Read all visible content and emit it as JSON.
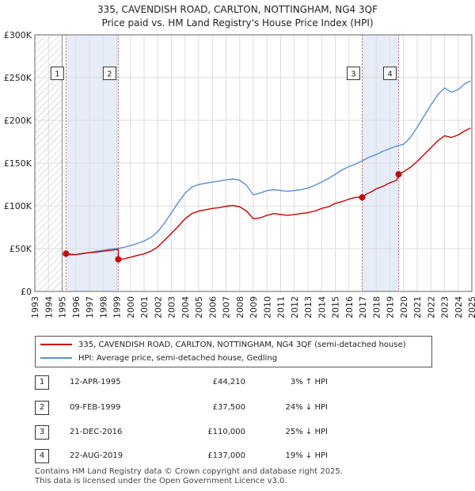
{
  "title_line1": "335, CAVENDISH ROAD, CARLTON, NOTTINGHAM, NG4 3QF",
  "title_line2": "Price paid vs. HM Land Registry's House Price Index (HPI)",
  "chart_data": {
    "type": "line",
    "xlim": [
      1993,
      2025
    ],
    "ylim": [
      0,
      300000
    ],
    "y_ticks": [
      0,
      50000,
      100000,
      150000,
      200000,
      250000,
      300000
    ],
    "y_tick_labels": [
      "£0",
      "£50K",
      "£100K",
      "£150K",
      "£200K",
      "£250K",
      "£300K"
    ],
    "x_ticks": [
      1993,
      1994,
      1995,
      1996,
      1997,
      1998,
      1999,
      2000,
      2001,
      2002,
      2003,
      2004,
      2005,
      2006,
      2007,
      2008,
      2009,
      2010,
      2011,
      2012,
      2013,
      2014,
      2015,
      2016,
      2017,
      2018,
      2019,
      2020,
      2021,
      2022,
      2023,
      2024,
      2025
    ],
    "grid": true,
    "data_start_year": 1995,
    "series": [
      {
        "name": "335, CAVENDISH ROAD, CARLTON, NOTTINGHAM, NG4 3QF (semi-detached house)",
        "color": "#cc0000",
        "points": [
          [
            1995.28,
            44210
          ],
          [
            1995.6,
            43500
          ],
          [
            1996.0,
            43000
          ],
          [
            1996.5,
            44500
          ],
          [
            1997.0,
            45500
          ],
          [
            1997.5,
            46000
          ],
          [
            1998.0,
            47000
          ],
          [
            1998.5,
            48000
          ],
          [
            1999.0,
            49000
          ],
          [
            1999.11,
            49500
          ],
          [
            1999.11,
            37500
          ],
          [
            1999.5,
            38000
          ],
          [
            2000.0,
            40000
          ],
          [
            2000.5,
            42000
          ],
          [
            2001.0,
            44000
          ],
          [
            2001.5,
            47000
          ],
          [
            2002.0,
            52000
          ],
          [
            2002.5,
            60000
          ],
          [
            2003.0,
            68000
          ],
          [
            2003.5,
            76000
          ],
          [
            2004.0,
            85000
          ],
          [
            2004.5,
            91000
          ],
          [
            2005.0,
            94000
          ],
          [
            2005.5,
            95500
          ],
          [
            2006.0,
            97000
          ],
          [
            2006.5,
            98000
          ],
          [
            2007.0,
            99500
          ],
          [
            2007.5,
            100500
          ],
          [
            2008.0,
            99000
          ],
          [
            2008.5,
            94000
          ],
          [
            2009.0,
            85000
          ],
          [
            2009.5,
            86000
          ],
          [
            2010.0,
            89000
          ],
          [
            2010.5,
            91000
          ],
          [
            2011.0,
            90000
          ],
          [
            2011.5,
            89000
          ],
          [
            2012.0,
            90000
          ],
          [
            2012.5,
            91000
          ],
          [
            2013.0,
            92000
          ],
          [
            2013.5,
            94000
          ],
          [
            2014.0,
            97000
          ],
          [
            2014.5,
            99000
          ],
          [
            2015.0,
            103000
          ],
          [
            2015.5,
            105000
          ],
          [
            2016.0,
            108000
          ],
          [
            2016.5,
            110000
          ],
          [
            2016.97,
            110000
          ],
          [
            2017.3,
            114000
          ],
          [
            2017.7,
            117000
          ],
          [
            2018.0,
            120000
          ],
          [
            2018.5,
            123000
          ],
          [
            2019.0,
            127000
          ],
          [
            2019.5,
            130000
          ],
          [
            2019.64,
            137000
          ],
          [
            2020.0,
            140000
          ],
          [
            2020.5,
            145000
          ],
          [
            2021.0,
            152000
          ],
          [
            2021.5,
            160000
          ],
          [
            2022.0,
            168000
          ],
          [
            2022.5,
            176000
          ],
          [
            2023.0,
            182000
          ],
          [
            2023.5,
            180000
          ],
          [
            2024.0,
            183000
          ],
          [
            2024.5,
            188000
          ],
          [
            2024.9,
            191000
          ]
        ]
      },
      {
        "name": "HPI: Average price, semi-detached house, Gedling",
        "color": "#5b8fd1",
        "points": [
          [
            1995.0,
            43000
          ],
          [
            1995.5,
            42500
          ],
          [
            1996.0,
            43000
          ],
          [
            1996.5,
            44000
          ],
          [
            1997.0,
            45500
          ],
          [
            1997.5,
            47000
          ],
          [
            1998.0,
            48000
          ],
          [
            1998.5,
            49500
          ],
          [
            1999.0,
            50000
          ],
          [
            1999.5,
            51500
          ],
          [
            2000.0,
            53500
          ],
          [
            2000.5,
            56000
          ],
          [
            2001.0,
            59000
          ],
          [
            2001.5,
            63000
          ],
          [
            2002.0,
            70000
          ],
          [
            2002.5,
            80000
          ],
          [
            2003.0,
            92000
          ],
          [
            2003.5,
            104000
          ],
          [
            2004.0,
            115000
          ],
          [
            2004.5,
            122000
          ],
          [
            2005.0,
            125000
          ],
          [
            2005.5,
            126500
          ],
          [
            2006.0,
            128000
          ],
          [
            2006.5,
            129000
          ],
          [
            2007.0,
            130500
          ],
          [
            2007.5,
            131500
          ],
          [
            2008.0,
            130000
          ],
          [
            2008.5,
            124000
          ],
          [
            2009.0,
            113000
          ],
          [
            2009.5,
            115000
          ],
          [
            2010.0,
            118000
          ],
          [
            2010.5,
            119000
          ],
          [
            2011.0,
            118000
          ],
          [
            2011.5,
            117000
          ],
          [
            2012.0,
            118000
          ],
          [
            2012.5,
            119000
          ],
          [
            2013.0,
            121000
          ],
          [
            2013.5,
            124000
          ],
          [
            2014.0,
            128000
          ],
          [
            2014.5,
            132000
          ],
          [
            2015.0,
            137000
          ],
          [
            2015.5,
            142000
          ],
          [
            2016.0,
            146000
          ],
          [
            2016.5,
            149000
          ],
          [
            2017.0,
            153000
          ],
          [
            2017.5,
            157000
          ],
          [
            2018.0,
            160000
          ],
          [
            2018.5,
            164000
          ],
          [
            2019.0,
            167000
          ],
          [
            2019.5,
            170000
          ],
          [
            2020.0,
            172000
          ],
          [
            2020.5,
            180000
          ],
          [
            2021.0,
            192000
          ],
          [
            2021.5,
            205000
          ],
          [
            2022.0,
            218000
          ],
          [
            2022.5,
            230000
          ],
          [
            2023.0,
            238000
          ],
          [
            2023.5,
            233000
          ],
          [
            2024.0,
            236000
          ],
          [
            2024.5,
            243000
          ],
          [
            2024.9,
            246000
          ]
        ]
      }
    ],
    "hatch_regions": [
      [
        1993,
        1995
      ]
    ],
    "shaded_regions": [
      [
        1995.28,
        1999.11
      ],
      [
        2016.97,
        2019.64
      ]
    ],
    "sale_markers": [
      {
        "num": "1",
        "x": 1995.28,
        "y": 44210
      },
      {
        "num": "2",
        "x": 1999.11,
        "y": 37500
      },
      {
        "num": "3",
        "x": 2016.97,
        "y": 110000
      },
      {
        "num": "4",
        "x": 2019.64,
        "y": 137000
      }
    ],
    "label_box_y": 255000,
    "legend_position": "below"
  },
  "legend": {
    "property_label": "335, CAVENDISH ROAD, CARLTON, NOTTINGHAM, NG4 3QF (semi-detached house)",
    "hpi_label": "HPI: Average price, semi-detached house, Gedling"
  },
  "transactions": [
    {
      "num": "1",
      "date": "12-APR-1995",
      "price": "£44,210",
      "hpi": "3% ↑ HPI"
    },
    {
      "num": "2",
      "date": "09-FEB-1999",
      "price": "£37,500",
      "hpi": "24% ↓ HPI"
    },
    {
      "num": "3",
      "date": "21-DEC-2016",
      "price": "£110,000",
      "hpi": "25% ↓ HPI"
    },
    {
      "num": "4",
      "date": "22-AUG-2019",
      "price": "£137,000",
      "hpi": "19% ↓ HPI"
    }
  ],
  "footer_line1": "Contains HM Land Registry data © Crown copyright and database right 2025.",
  "footer_line2": "This data is licensed under the Open Government Licence v3.0."
}
